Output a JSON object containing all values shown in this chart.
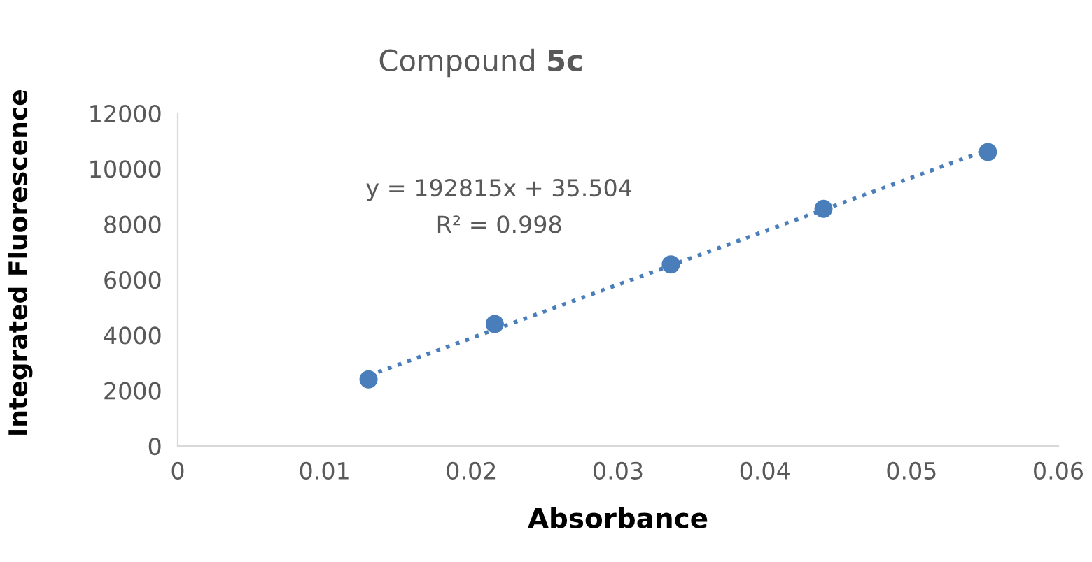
{
  "chart_data": {
    "type": "scatter",
    "title": "Compound 5c",
    "xlabel": "Absorbance",
    "ylabel": "Integrated Fluorescence",
    "series": [
      {
        "color": "#4a7ebb",
        "marker": "circle",
        "x": [
          0.013,
          0.0216,
          0.0336,
          0.044,
          0.0552
        ],
        "values": [
          2400,
          4400,
          6550,
          8550,
          10600
        ]
      },
      {
        "type": "line",
        "color": "#4a7ebb",
        "line_style": "dotted",
        "x": [
          0.013,
          0.0552
        ],
        "values": [
          2540,
          10680
        ]
      }
    ],
    "annotations": [
      "y = 192815x + 35.504",
      "R² = 0.998"
    ],
    "xlim": [
      0,
      0.06
    ],
    "ylim": [
      0,
      12000
    ],
    "xticks": [
      {
        "value": 0,
        "label": "0"
      },
      0.01,
      0.02,
      0.03,
      0.04,
      0.05,
      0.06
    ],
    "yticks": [
      0,
      2000,
      4000,
      6000,
      8000,
      10000,
      12000
    ],
    "grid": false,
    "legend": false
  }
}
